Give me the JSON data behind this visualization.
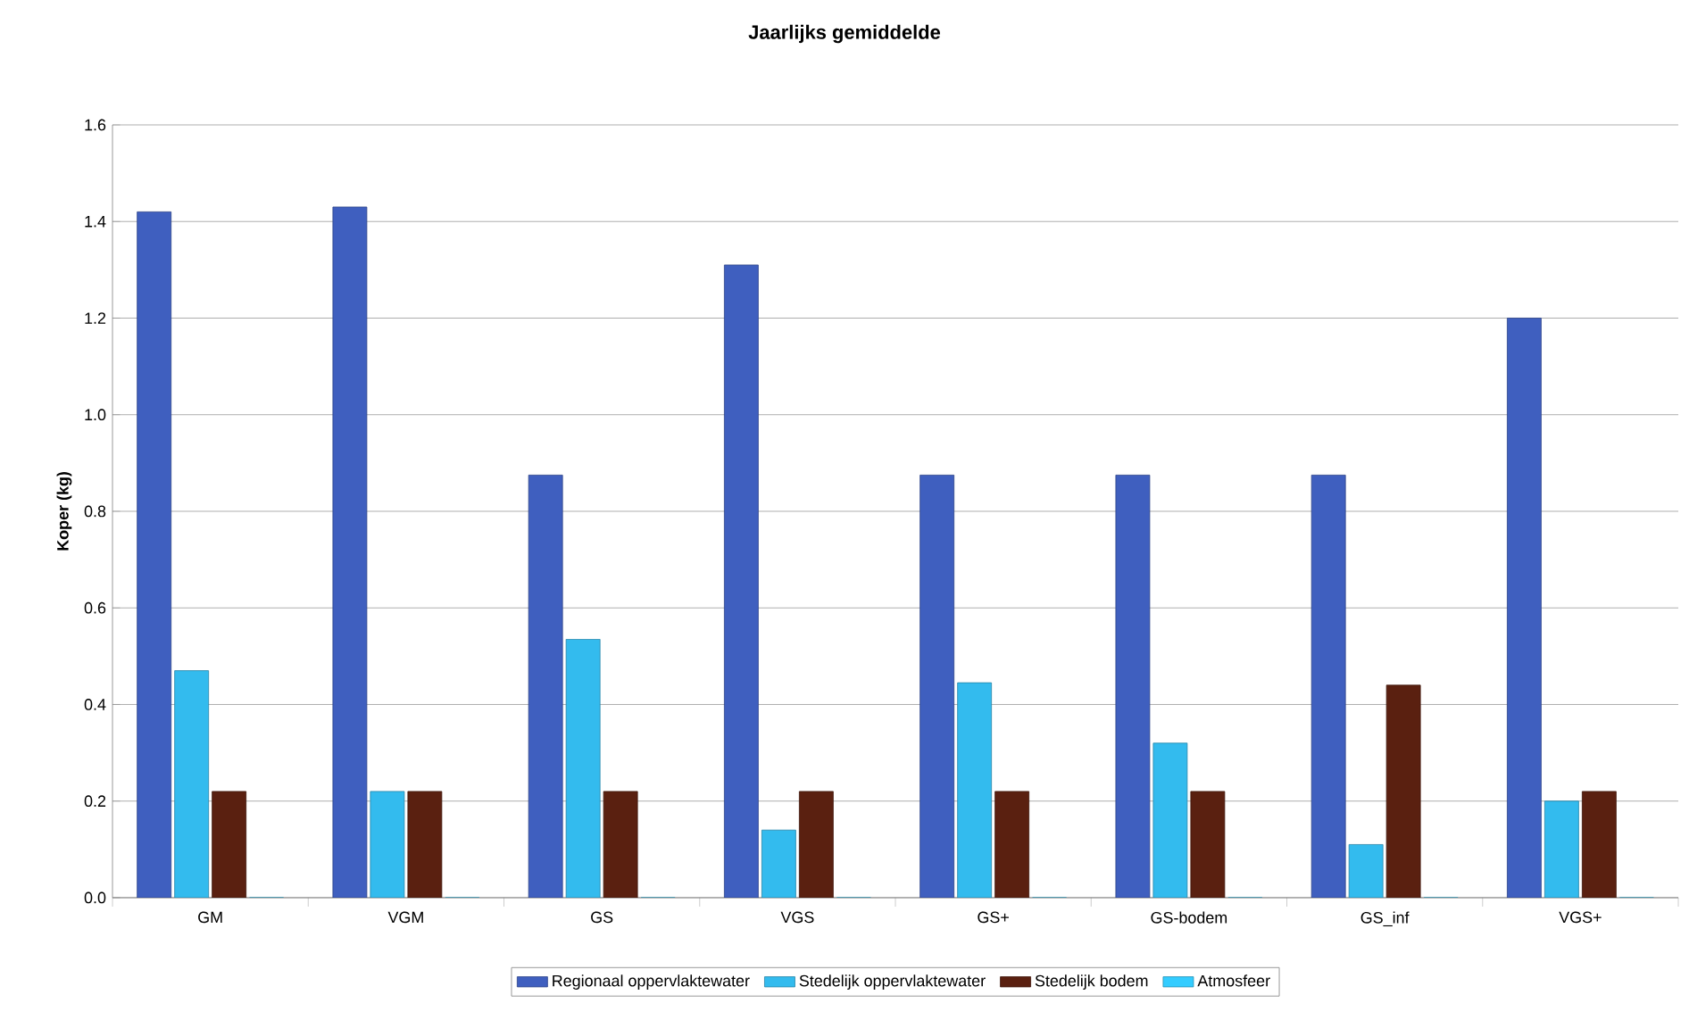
{
  "chart_data": {
    "type": "bar",
    "title": "Jaarlijks gemiddelde",
    "ylabel": "Koper (kg)",
    "categories": [
      "GM",
      "VGM",
      "GS",
      "VGS",
      "GS+",
      "GS-bodem",
      "GS_inf",
      "VGS+"
    ],
    "series": [
      {
        "name": "Regionaal oppervlaktewater",
        "color": "#3f5fbf",
        "values": [
          1.42,
          1.43,
          0.875,
          1.31,
          0.875,
          0.875,
          0.875,
          1.2
        ]
      },
      {
        "name": "Stedelijk oppervlaktewater",
        "color": "#33bbee",
        "values": [
          0.47,
          0.22,
          0.535,
          0.14,
          0.445,
          0.32,
          0.11,
          0.2
        ]
      },
      {
        "name": "Stedelijk bodem",
        "color": "#5a2010",
        "values": [
          0.22,
          0.22,
          0.22,
          0.22,
          0.22,
          0.22,
          0.44,
          0.22
        ]
      },
      {
        "name": "Atmosfeer",
        "color": "#33ccff",
        "values": [
          0,
          0,
          0,
          0,
          0,
          0,
          0,
          0
        ]
      }
    ],
    "ylim": [
      0,
      1.6
    ],
    "yticks": [
      {
        "value": 0,
        "label": "0.0"
      },
      0.2,
      0.4,
      0.6,
      0.8,
      {
        "value": 1,
        "label": "1.0"
      },
      1.2,
      1.4,
      1.6
    ],
    "grid": "y",
    "legend": "bottom"
  }
}
